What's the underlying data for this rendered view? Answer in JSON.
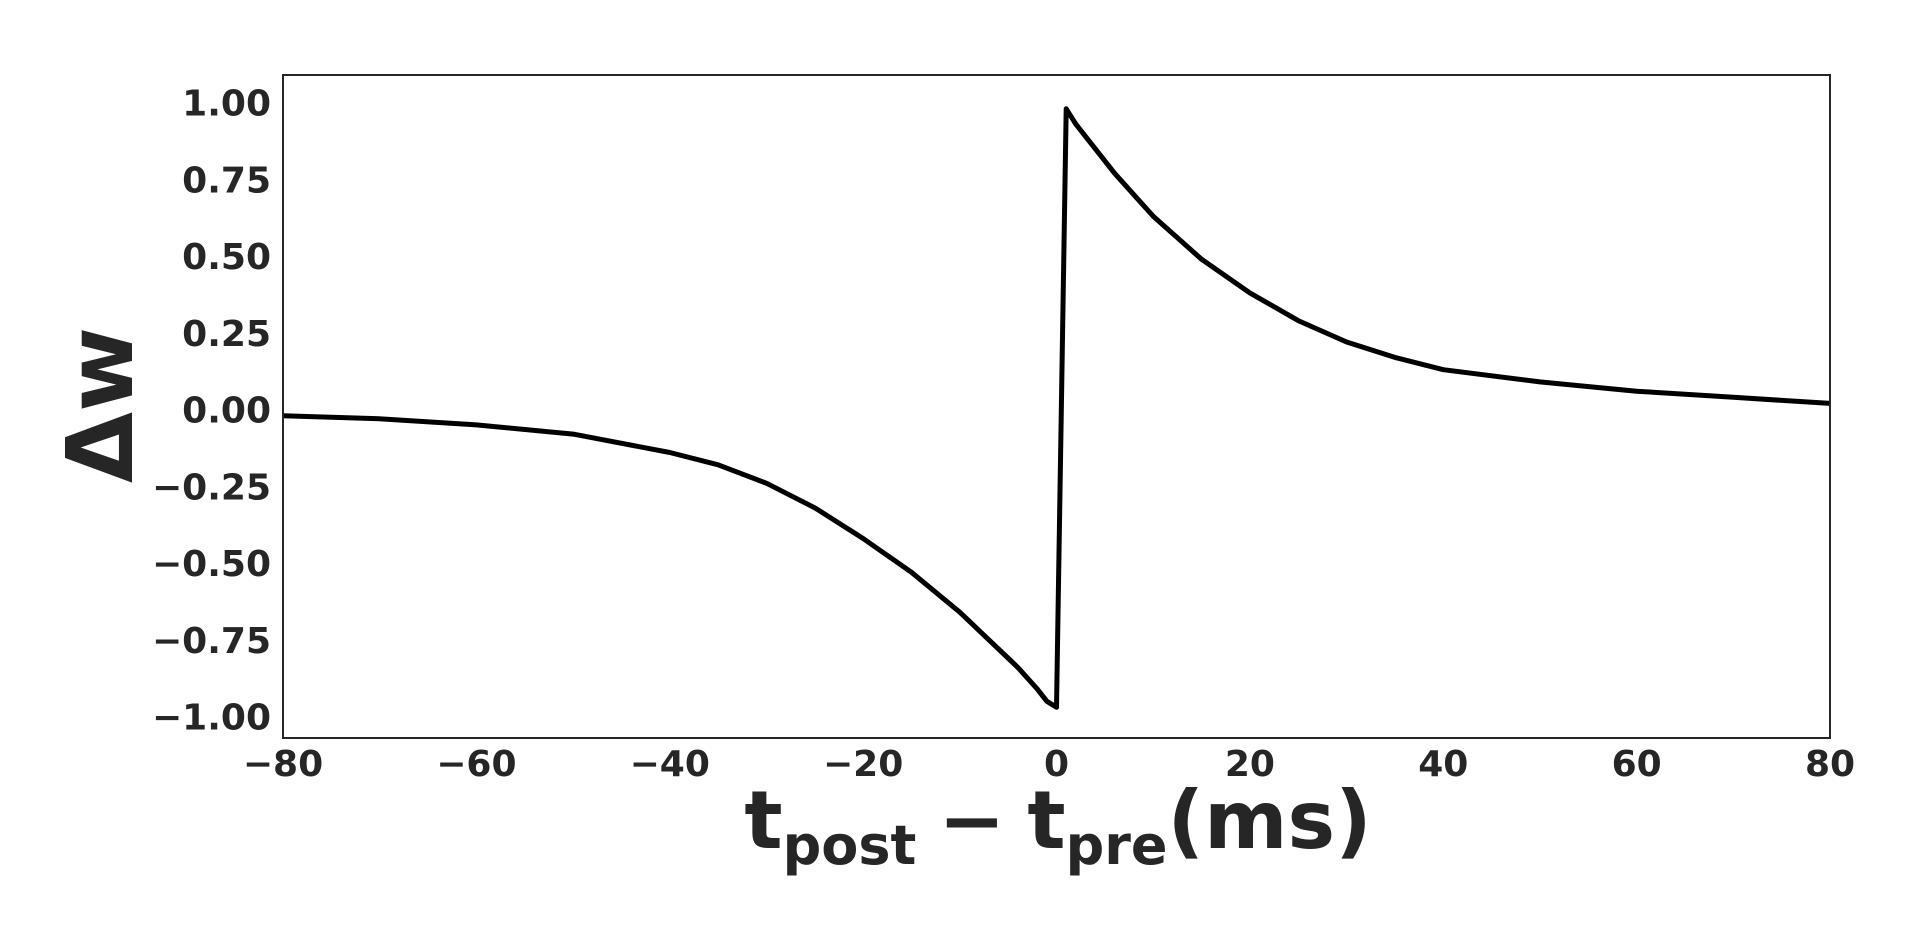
{
  "chart_data": {
    "type": "line",
    "title": "",
    "xlabel": {
      "main": "t",
      "sub1": "post",
      "minus": "−",
      "main2": "t",
      "sub2": "pre",
      "unit": "(ms)"
    },
    "ylabel": "Δw",
    "xlim": [
      -80,
      80
    ],
    "ylim": [
      -1.07,
      1.09
    ],
    "xticks": [
      -80,
      -60,
      -40,
      -20,
      0,
      20,
      40,
      60,
      80
    ],
    "xtick_labels": [
      "−80",
      "−60",
      "−40",
      "−20",
      "0",
      "20",
      "40",
      "60",
      "80"
    ],
    "yticks": [
      1.0,
      0.75,
      0.5,
      0.25,
      0.0,
      -0.25,
      -0.5,
      -0.75,
      -1.0
    ],
    "ytick_labels": [
      "1.00",
      "0.75",
      "0.50",
      "0.25",
      "0.00",
      "−0.25",
      "−0.50",
      "−0.75",
      "−1.00"
    ],
    "grid": false,
    "series": [
      {
        "color": "#000000",
        "x": [
          -80,
          -70,
          -60,
          -50,
          -40,
          -35,
          -30,
          -25,
          -20,
          -15,
          -10,
          -8,
          -6,
          -4,
          -2,
          -1,
          0,
          1,
          2,
          4,
          6,
          8,
          10,
          15,
          20,
          25,
          30,
          35,
          40,
          50,
          60,
          70,
          80
        ],
        "y": [
          -0.02,
          -0.03,
          -0.05,
          -0.08,
          -0.14,
          -0.18,
          -0.24,
          -0.32,
          -0.42,
          -0.53,
          -0.66,
          -0.72,
          -0.78,
          -0.84,
          -0.91,
          -0.95,
          -0.97,
          0.98,
          0.93,
          0.85,
          0.77,
          0.7,
          0.63,
          0.49,
          0.38,
          0.29,
          0.22,
          0.17,
          0.13,
          0.09,
          0.06,
          0.04,
          0.02
        ]
      }
    ]
  }
}
